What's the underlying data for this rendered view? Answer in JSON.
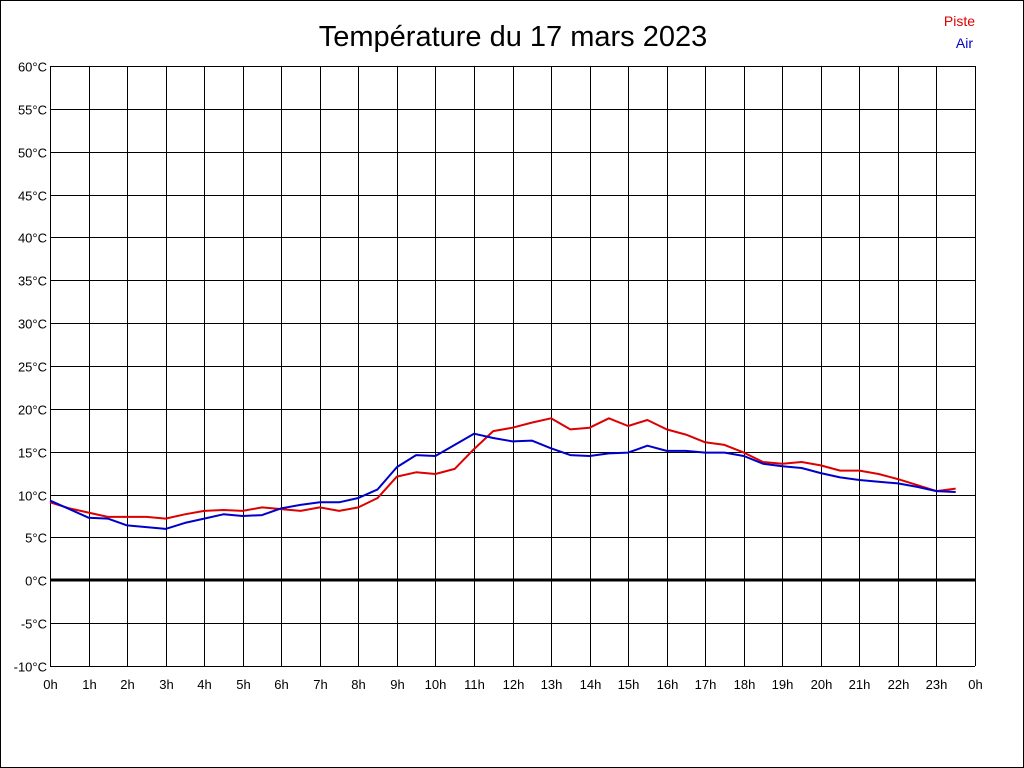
{
  "chart_data": {
    "type": "line",
    "title": "Température du 17 mars 2023",
    "xlabel": "",
    "ylabel": "",
    "xlim": [
      0,
      24
    ],
    "ylim": [
      -10,
      60
    ],
    "grid": true,
    "legend_position": "top-right",
    "x_tick_labels": [
      "0h",
      "1h",
      "2h",
      "3h",
      "4h",
      "5h",
      "6h",
      "7h",
      "8h",
      "9h",
      "10h",
      "11h",
      "12h",
      "13h",
      "14h",
      "15h",
      "16h",
      "17h",
      "18h",
      "19h",
      "20h",
      "21h",
      "22h",
      "23h",
      "0h"
    ],
    "y_tick_labels": [
      "-10°C",
      "-5°C",
      "0°C",
      "5°C",
      "10°C",
      "15°C",
      "20°C",
      "25°C",
      "30°C",
      "35°C",
      "40°C",
      "45°C",
      "50°C",
      "55°C",
      "60°C"
    ],
    "y_tick_values": [
      -10,
      -5,
      0,
      5,
      10,
      15,
      20,
      25,
      30,
      35,
      40,
      45,
      50,
      55,
      60
    ],
    "series": [
      {
        "name": "Piste",
        "color": "#dd0000",
        "x": [
          0,
          0.5,
          1,
          1.5,
          2,
          2.5,
          3,
          3.5,
          4,
          4.5,
          5,
          5.5,
          6,
          6.5,
          7,
          7.5,
          8,
          8.5,
          9,
          9.5,
          10,
          10.5,
          11,
          11.5,
          12,
          12.5,
          13,
          13.5,
          14,
          14.5,
          15,
          15.5,
          16,
          16.5,
          17,
          17.5,
          18,
          18.5,
          19,
          19.5,
          20,
          20.5,
          21,
          21.5,
          22,
          22.5,
          23,
          23.5
        ],
        "y": [
          9.1,
          8.4,
          7.9,
          7.4,
          7.4,
          7.4,
          7.2,
          7.7,
          8.1,
          8.2,
          8.1,
          8.5,
          8.3,
          8.1,
          8.5,
          8.1,
          8.5,
          9.6,
          12.1,
          12.6,
          12.4,
          13.0,
          15.3,
          17.4,
          17.8,
          18.4,
          18.9,
          17.6,
          17.8,
          18.9,
          18.0,
          18.7,
          17.6,
          17.0,
          16.1,
          15.8,
          14.9,
          13.8,
          13.6,
          13.8,
          13.4,
          12.8,
          12.8,
          12.4,
          11.8,
          11.1,
          10.4,
          10.7
        ]
      },
      {
        "name": "Air",
        "color": "#0000cc",
        "x": [
          0,
          0.5,
          1,
          1.5,
          2,
          2.5,
          3,
          3.5,
          4,
          4.5,
          5,
          5.5,
          6,
          6.5,
          7,
          7.5,
          8,
          8.5,
          9,
          9.5,
          10,
          10.5,
          11,
          11.5,
          12,
          12.5,
          13,
          13.5,
          14,
          14.5,
          15,
          15.5,
          16,
          16.5,
          17,
          17.5,
          18,
          18.5,
          19,
          19.5,
          20,
          20.5,
          21,
          21.5,
          22,
          22.5,
          23,
          23.5
        ],
        "y": [
          9.3,
          8.3,
          7.3,
          7.2,
          6.4,
          6.2,
          6.0,
          6.7,
          7.2,
          7.7,
          7.5,
          7.6,
          8.4,
          8.8,
          9.1,
          9.1,
          9.6,
          10.6,
          13.2,
          14.6,
          14.5,
          15.8,
          17.1,
          16.6,
          16.2,
          16.3,
          15.4,
          14.6,
          14.5,
          14.8,
          14.9,
          15.7,
          15.1,
          15.1,
          14.9,
          14.9,
          14.5,
          13.6,
          13.3,
          13.1,
          12.5,
          12.0,
          11.7,
          11.5,
          11.3,
          10.9,
          10.4,
          10.3
        ]
      }
    ],
    "zero_line": {
      "value": 0,
      "color": "#000000"
    }
  }
}
